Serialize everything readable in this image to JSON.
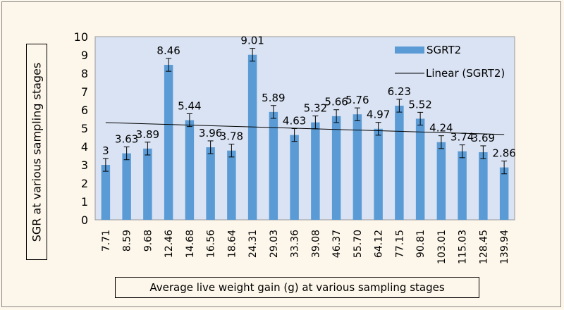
{
  "chart_data": {
    "type": "bar",
    "title": "",
    "xlabel": "Average live weight gain (g) at various sampling stages",
    "ylabel": "SGR at various sampling stages",
    "categories": [
      "7.71",
      "8.59",
      "9.68",
      "12.46",
      "14.68",
      "16.56",
      "18.64",
      "24.31",
      "29.03",
      "33.36",
      "39.08",
      "46.37",
      "55.70",
      "64.12",
      "77.15",
      "90.81",
      "103.01",
      "115.03",
      "128.45",
      "139.94"
    ],
    "series": [
      {
        "name": "SGRT2",
        "values": [
          3,
          3.63,
          3.89,
          8.46,
          5.44,
          3.96,
          3.78,
          9.01,
          5.89,
          4.63,
          5.32,
          5.66,
          5.76,
          4.97,
          6.23,
          5.52,
          4.24,
          3.74,
          3.69,
          2.86
        ],
        "color": "#5b9bd5",
        "error": 0.35
      }
    ],
    "data_labels": [
      "3",
      "3.63",
      "3.89",
      "8.46",
      "5.44",
      "3.96",
      "3.78",
      "9.01",
      "5.89",
      "4.63",
      "5.32",
      "5.66",
      "5.76",
      "4.97",
      "6.23",
      "5.52",
      "4.24",
      "3.74",
      "3.69",
      "2.86"
    ],
    "trendline": {
      "name": "Linear (SGRT2)",
      "type": "linear",
      "color": "#000000"
    },
    "ylim": [
      0,
      10
    ],
    "yticks": [
      "0",
      "1",
      "2",
      "3",
      "4",
      "5",
      "6",
      "7",
      "8",
      "9",
      "10"
    ],
    "grid": false,
    "legend": "top-right",
    "plot_background": "#dae3f3"
  }
}
